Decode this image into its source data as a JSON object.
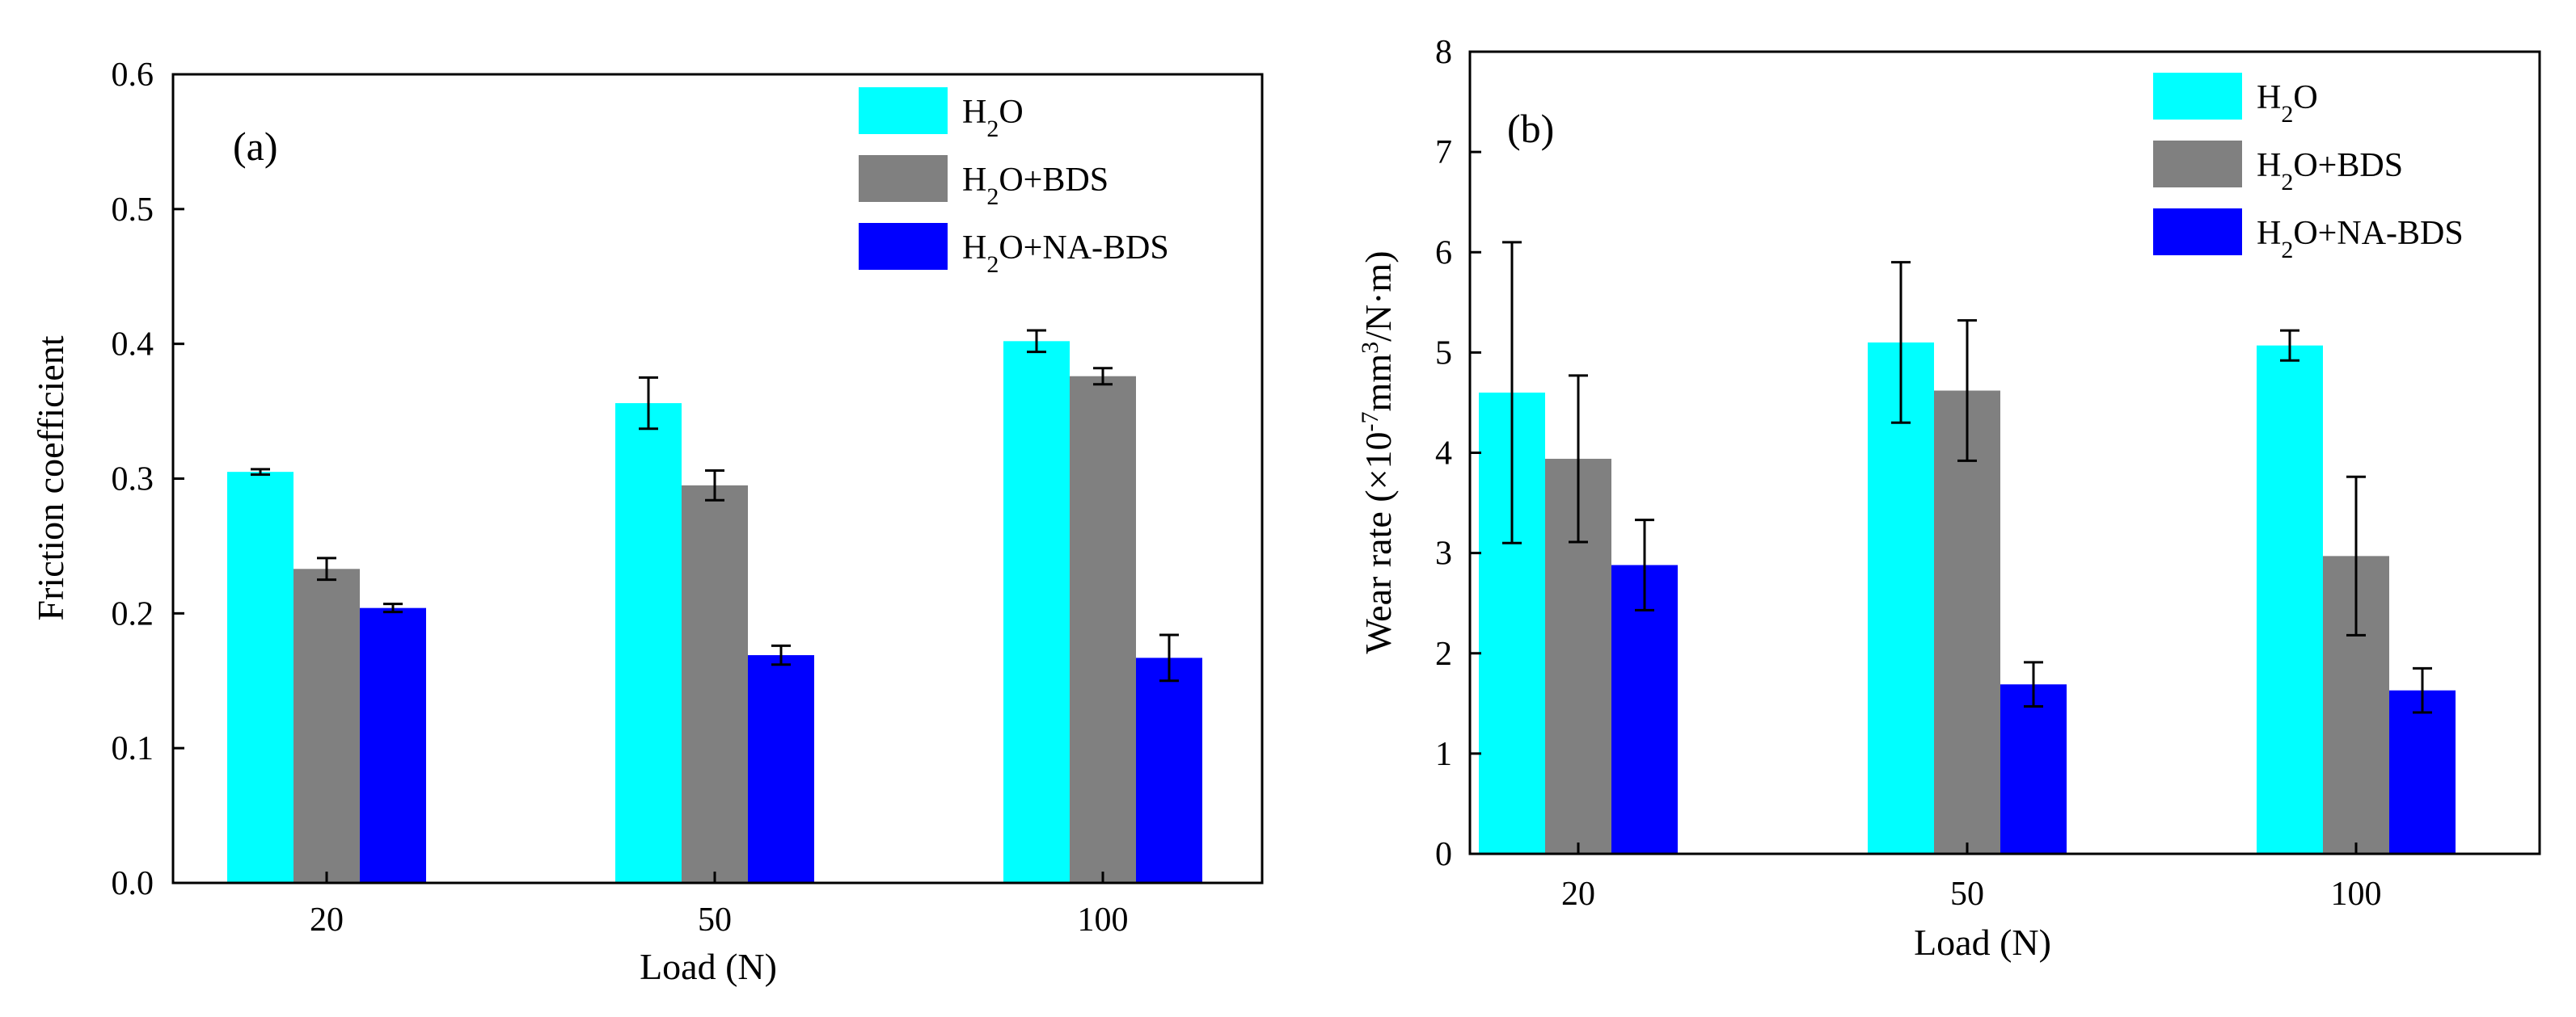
{
  "chart_data": [
    {
      "type": "bar",
      "panel_label": "(a)",
      "title": "",
      "xlabel": "Load (N)",
      "ylabel": "Friction coefficient",
      "ylim": [
        0,
        0.6
      ],
      "yticks": [
        0.0,
        0.1,
        0.2,
        0.3,
        0.4,
        0.5,
        0.6
      ],
      "ytick_labels": [
        "0.0",
        "0.1",
        "0.2",
        "0.3",
        "0.4",
        "0.5",
        "0.6"
      ],
      "categories": [
        "20",
        "50",
        "100"
      ],
      "grid": false,
      "legend_position": "top-right",
      "series": [
        {
          "name": "H2O",
          "legend": {
            "pre": "H",
            "sub": "2",
            "post": "O"
          },
          "color": "#00FFFF",
          "values": [
            0.305,
            0.356,
            0.402
          ],
          "errors": [
            0.002,
            0.019,
            0.008
          ]
        },
        {
          "name": "H2O+BDS",
          "legend": {
            "pre": "H",
            "sub": "2",
            "post": "O+BDS"
          },
          "color": "#808080",
          "values": [
            0.233,
            0.295,
            0.376
          ],
          "errors": [
            0.008,
            0.011,
            0.006
          ]
        },
        {
          "name": "H2O+NA-BDS",
          "legend": {
            "pre": "H",
            "sub": "2",
            "post": "O+NA-BDS"
          },
          "color": "#0000FF",
          "values": [
            0.204,
            0.169,
            0.167
          ],
          "errors": [
            0.003,
            0.007,
            0.017
          ]
        }
      ]
    },
    {
      "type": "bar",
      "panel_label": "(b)",
      "title": "",
      "xlabel": "Load (N)",
      "ylabel": {
        "pre": "Wear rate (×10",
        "sup1": "-7",
        "mid": "mm",
        "sup2": "3",
        "post": "/N·m)"
      },
      "ylim": [
        0,
        8
      ],
      "yticks": [
        0,
        1,
        2,
        3,
        4,
        5,
        6,
        7,
        8
      ],
      "ytick_labels": [
        "0",
        "1",
        "2",
        "3",
        "4",
        "5",
        "6",
        "7",
        "8"
      ],
      "categories": [
        "20",
        "50",
        "100"
      ],
      "grid": false,
      "legend_position": "top-right",
      "series": [
        {
          "name": "H2O",
          "legend": {
            "pre": "H",
            "sub": "2",
            "post": "O"
          },
          "color": "#00FFFF",
          "values": [
            4.6,
            5.1,
            5.07
          ],
          "errors": [
            1.5,
            0.8,
            0.15
          ]
        },
        {
          "name": "H2O+BDS",
          "legend": {
            "pre": "H",
            "sub": "2",
            "post": "O+BDS"
          },
          "color": "#808080",
          "values": [
            3.94,
            4.62,
            2.97
          ],
          "errors": [
            0.83,
            0.7,
            0.79
          ]
        },
        {
          "name": "H2O+NA-BDS",
          "legend": {
            "pre": "H",
            "sub": "2",
            "post": "O+NA-BDS"
          },
          "color": "#0000FF",
          "values": [
            2.88,
            1.69,
            1.63
          ],
          "errors": [
            0.45,
            0.22,
            0.22
          ]
        }
      ]
    }
  ]
}
